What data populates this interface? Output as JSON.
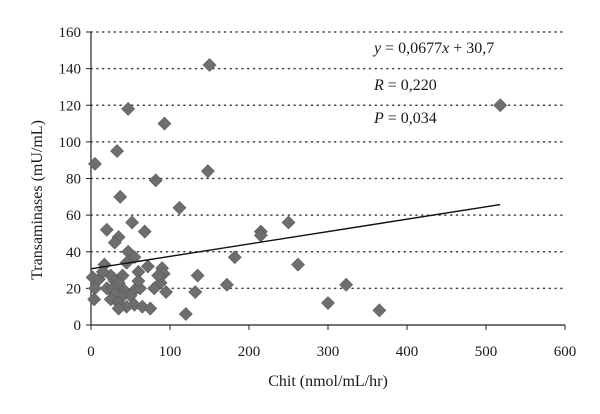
{
  "chart_data": {
    "type": "scatter",
    "xlabel": "Chit (nmol/mL/hr)",
    "ylabel": "Transaminases (mU/mL)",
    "xlim": [
      0,
      600
    ],
    "ylim": [
      0,
      160
    ],
    "xticks": [
      "0",
      "100",
      "200",
      "300",
      "400",
      "500",
      "600"
    ],
    "yticks": [
      "0",
      "20",
      "40",
      "60",
      "80",
      "100",
      "120",
      "140",
      "160"
    ],
    "grid": "horizontal dotted",
    "marker": "diamond",
    "marker_color": "#6e6e6e",
    "line_color": "#111111",
    "annotations": {
      "equation": {
        "y": "y",
        "eq": " = 0,0677",
        "x": "x",
        "rest": " + 30,7"
      },
      "r": {
        "sym": "R",
        "val": " = 0,220"
      },
      "p": {
        "sym": "P",
        "val": " = 0,034"
      }
    },
    "regression": {
      "slope": 0.0677,
      "intercept": 30.7,
      "x_range": [
        0,
        518
      ]
    },
    "points": [
      [
        150,
        142
      ],
      [
        518,
        120
      ],
      [
        47,
        118
      ],
      [
        93,
        110
      ],
      [
        33,
        95
      ],
      [
        5,
        88
      ],
      [
        148,
        84
      ],
      [
        82,
        79
      ],
      [
        37,
        70
      ],
      [
        112,
        64
      ],
      [
        52,
        56
      ],
      [
        250,
        56
      ],
      [
        20,
        52
      ],
      [
        68,
        51
      ],
      [
        215,
        51
      ],
      [
        215,
        49
      ],
      [
        35,
        48
      ],
      [
        30,
        45
      ],
      [
        47,
        40
      ],
      [
        55,
        37
      ],
      [
        182,
        37
      ],
      [
        45,
        34
      ],
      [
        262,
        33
      ],
      [
        17,
        33
      ],
      [
        72,
        32
      ],
      [
        90,
        31
      ],
      [
        92,
        28
      ],
      [
        60,
        29
      ],
      [
        135,
        27
      ],
      [
        40,
        27
      ],
      [
        25,
        27
      ],
      [
        2,
        26
      ],
      [
        10,
        25
      ],
      [
        30,
        24
      ],
      [
        35,
        23
      ],
      [
        88,
        23
      ],
      [
        172,
        22
      ],
      [
        323,
        22
      ],
      [
        5,
        20
      ],
      [
        20,
        20
      ],
      [
        28,
        20
      ],
      [
        42,
        19
      ],
      [
        55,
        19
      ],
      [
        62,
        20
      ],
      [
        80,
        20
      ],
      [
        95,
        18
      ],
      [
        132,
        18
      ],
      [
        30,
        17
      ],
      [
        40,
        16
      ],
      [
        50,
        16
      ],
      [
        4,
        14
      ],
      [
        25,
        14
      ],
      [
        35,
        12
      ],
      [
        300,
        12
      ],
      [
        55,
        11
      ],
      [
        45,
        10
      ],
      [
        65,
        10
      ],
      [
        75,
        9
      ],
      [
        35,
        9
      ],
      [
        365,
        8
      ],
      [
        120,
        6
      ],
      [
        60,
        24
      ],
      [
        85,
        27
      ],
      [
        15,
        29
      ]
    ]
  }
}
